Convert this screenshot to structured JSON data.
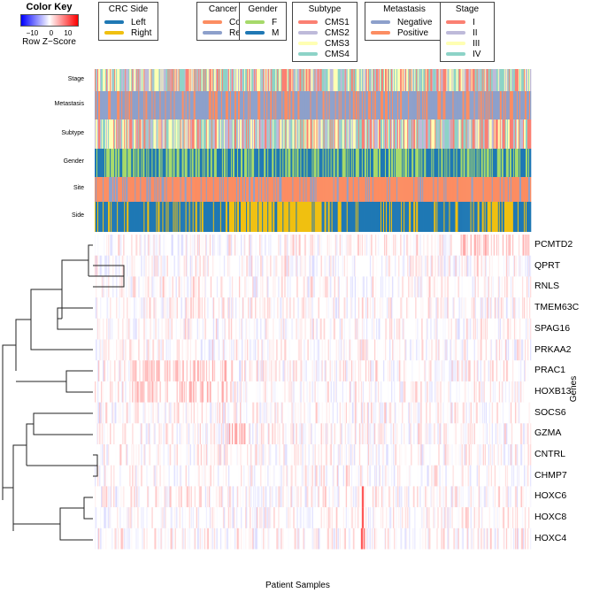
{
  "chart_data": {
    "type": "heatmap",
    "xlabel": "Patient Samples",
    "ylabel": "Genes",
    "genes": [
      "PCMTD2",
      "QPRT",
      "RNLS",
      "TMEM63C",
      "SPAG16",
      "PRKAA2",
      "PRAC1",
      "HOXB13",
      "SOCS6",
      "GZMA",
      "CNTRL",
      "CHMP7",
      "HOXC6",
      "HOXC8",
      "HOXC4"
    ],
    "annotation_tracks": [
      "Stage",
      "Metastasis",
      "Subtype",
      "Gender",
      "Site",
      "Side"
    ],
    "n_samples": 490,
    "color_key": {
      "title": "Color Key",
      "label": "Row Z−Score",
      "ticks": [
        "−10",
        "0",
        "10"
      ],
      "range": [
        -14,
        14
      ],
      "low": "#0000ff",
      "mid": "#ffffff",
      "high": "#ff0000"
    },
    "legends": [
      {
        "title": "CRC Side",
        "items": [
          {
            "label": "Left",
            "color": "#1f78b4"
          },
          {
            "label": "Right",
            "color": "#f0c010"
          }
        ]
      },
      {
        "title": "Cancer Site",
        "items": [
          {
            "label": "Colon",
            "color": "#fc8d62"
          },
          {
            "label": "Rectum",
            "color": "#8da0cb"
          }
        ]
      },
      {
        "title": "Gender",
        "items": [
          {
            "label": "F",
            "color": "#a6d96a"
          },
          {
            "label": "M",
            "color": "#1f78b4"
          }
        ]
      },
      {
        "title": "Subtype",
        "items": [
          {
            "label": "CMS1",
            "color": "#fb8072"
          },
          {
            "label": "CMS2",
            "color": "#bebada"
          },
          {
            "label": "CMS3",
            "color": "#ffffb3"
          },
          {
            "label": "CMS4",
            "color": "#8dd3c7"
          }
        ]
      },
      {
        "title": "Metastasis",
        "items": [
          {
            "label": "Negative",
            "color": "#8da0cb"
          },
          {
            "label": "Positive",
            "color": "#fc8d62"
          }
        ]
      },
      {
        "title": "Stage",
        "items": [
          {
            "label": "I",
            "color": "#fb8072"
          },
          {
            "label": "II",
            "color": "#bebada"
          },
          {
            "label": "III",
            "color": "#ffffb3"
          },
          {
            "label": "IV",
            "color": "#8dd3c7"
          }
        ]
      }
    ]
  }
}
